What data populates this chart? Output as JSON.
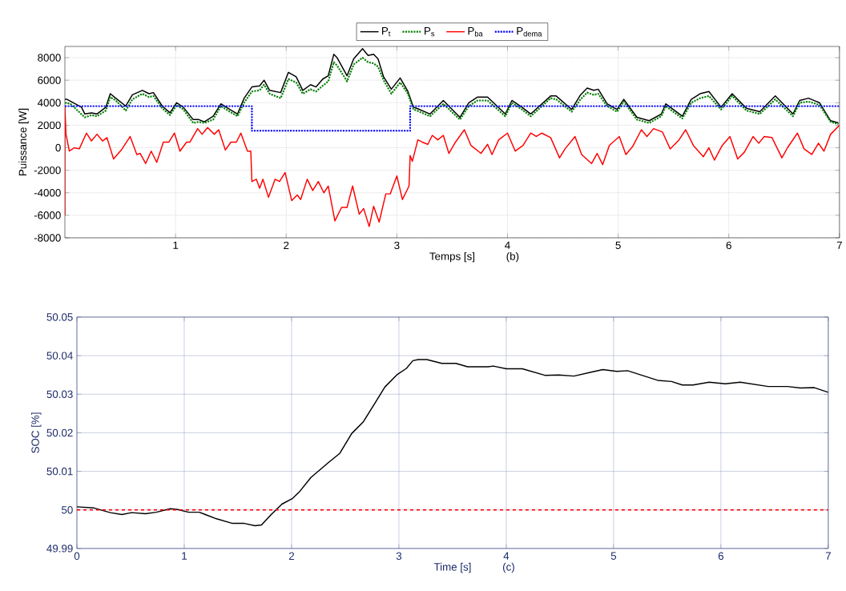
{
  "chart_data": [
    {
      "type": "line",
      "xlabel": "Temps [s]",
      "ylabel": "Puissance [W]",
      "annotations": [
        "(b)"
      ],
      "xlim": [
        0,
        7
      ],
      "xticks": [
        1,
        2,
        3,
        4,
        5,
        6,
        7
      ],
      "ylim": [
        -8000,
        9000
      ],
      "yticks": [
        -8000,
        -6000,
        -4000,
        -2000,
        0,
        2000,
        4000,
        6000,
        8000
      ],
      "grid": true,
      "legend": "top",
      "series": [
        {
          "name": "P$_{t}$",
          "color": "#000000",
          "line_style": "solid",
          "x": [
            0,
            0.02,
            0.15,
            0.18,
            0.24,
            0.29,
            0.37,
            0.41,
            0.46,
            0.55,
            0.61,
            0.7,
            0.76,
            0.8,
            0.88,
            0.95,
            1.01,
            1.07,
            1.16,
            1.21,
            1.26,
            1.34,
            1.41,
            1.49,
            1.56,
            1.62,
            1.69,
            1.76,
            1.8,
            1.85,
            1.95,
            2.02,
            2.09,
            2.15,
            2.22,
            2.27,
            2.33,
            2.38,
            2.43,
            2.46,
            2.55,
            2.61,
            2.69,
            2.74,
            2.79,
            2.83,
            2.88,
            2.95,
            3.03,
            3.1,
            3.15,
            3.18,
            3.3,
            3.42,
            3.57,
            3.65,
            3.73,
            3.82,
            3.98,
            4.04,
            4.13,
            4.21,
            4.39,
            4.44,
            4.58,
            4.66,
            4.72,
            4.78,
            4.82,
            4.9,
            4.99,
            5.05,
            5.17,
            5.28,
            5.39,
            5.43,
            5.58,
            5.66,
            5.74,
            5.82,
            5.93,
            6.03,
            6.16,
            6.28,
            6.42,
            6.58,
            6.64,
            6.72,
            6.82,
            6.92,
            6.99
          ],
          "values": [
            4300,
            4300,
            3600,
            3000,
            3100,
            3000,
            3600,
            4800,
            4400,
            3700,
            4700,
            5100,
            4800,
            4900,
            3700,
            3100,
            4000,
            3600,
            2500,
            2500,
            2300,
            2800,
            3900,
            3400,
            3000,
            4400,
            5400,
            5500,
            6000,
            5100,
            4900,
            6700,
            6300,
            5100,
            5600,
            5400,
            6100,
            6400,
            8300,
            8000,
            6400,
            7900,
            8800,
            8200,
            8300,
            7900,
            6300,
            5200,
            6200,
            5000,
            3600,
            3500,
            3000,
            4200,
            2700,
            4000,
            4500,
            4500,
            3000,
            4200,
            3600,
            3000,
            4600,
            4600,
            3400,
            4700,
            5300,
            5100,
            5200,
            3900,
            3400,
            4300,
            2700,
            2400,
            3000,
            3900,
            2800,
            4300,
            4800,
            5000,
            3600,
            4800,
            3500,
            3200,
            4600,
            3000,
            4200,
            4400,
            4000,
            2400,
            2200
          ]
        },
        {
          "name": "P$_{s}$",
          "color": "#008000",
          "line_style": "dotted",
          "x": [
            0,
            0.05,
            0.18,
            0.24,
            0.29,
            0.37,
            0.41,
            0.46,
            0.55,
            0.61,
            0.7,
            0.76,
            0.8,
            0.88,
            0.95,
            1.01,
            1.07,
            1.16,
            1.21,
            1.26,
            1.34,
            1.41,
            1.49,
            1.56,
            1.62,
            1.69,
            1.76,
            1.8,
            1.85,
            1.95,
            2.02,
            2.09,
            2.15,
            2.22,
            2.27,
            2.33,
            2.38,
            2.43,
            2.46,
            2.55,
            2.61,
            2.69,
            2.74,
            2.79,
            2.83,
            2.88,
            2.95,
            3.03,
            3.1,
            3.15,
            3.18,
            3.3,
            3.42,
            3.57,
            3.65,
            3.73,
            3.82,
            3.98,
            4.04,
            4.13,
            4.21,
            4.39,
            4.44,
            4.58,
            4.66,
            4.72,
            4.78,
            4.82,
            4.9,
            4.99,
            5.05,
            5.17,
            5.28,
            5.39,
            5.43,
            5.58,
            5.66,
            5.74,
            5.82,
            5.93,
            6.03,
            6.16,
            6.28,
            6.42,
            6.58,
            6.64,
            6.72,
            6.82,
            6.92,
            6.99
          ],
          "values": [
            4000,
            3900,
            2700,
            2900,
            2800,
            3300,
            4500,
            4200,
            3300,
            4300,
            4800,
            4500,
            4600,
            3500,
            2900,
            3800,
            3400,
            2200,
            2300,
            2200,
            2500,
            3700,
            3200,
            2800,
            4000,
            5000,
            5100,
            5600,
            4800,
            4400,
            6100,
            5800,
            4800,
            5200,
            5000,
            5500,
            5900,
            7600,
            7300,
            5900,
            7400,
            8000,
            7600,
            7500,
            7200,
            6000,
            4800,
            5800,
            4800,
            3400,
            3300,
            2800,
            3900,
            2500,
            3700,
            4200,
            4200,
            2800,
            4000,
            3400,
            2800,
            4400,
            4300,
            3200,
            4300,
            4900,
            4700,
            4800,
            3700,
            3200,
            4100,
            2500,
            2200,
            2800,
            3700,
            2600,
            4000,
            4400,
            4600,
            3400,
            4600,
            3300,
            3000,
            4300,
            2800,
            4000,
            4100,
            3800,
            2300,
            2100
          ]
        },
        {
          "name": "P$_{ba}$",
          "color": "#ff0000",
          "line_style": "solid",
          "x": [
            0,
            0,
            0.01,
            0.04,
            0.085,
            0.13,
            0.195,
            0.24,
            0.29,
            0.34,
            0.38,
            0.44,
            0.51,
            0.59,
            0.65,
            0.68,
            0.73,
            0.78,
            0.83,
            0.89,
            0.94,
            0.99,
            1.04,
            1.1,
            1.13,
            1.2,
            1.24,
            1.29,
            1.35,
            1.39,
            1.45,
            1.5,
            1.55,
            1.59,
            1.65,
            1.68,
            1.69,
            1.73,
            1.76,
            1.79,
            1.84,
            1.9,
            1.94,
            1.99,
            2.05,
            2.1,
            2.13,
            2.19,
            2.24,
            2.29,
            2.34,
            2.38,
            2.44,
            2.5,
            2.55,
            2.6,
            2.66,
            2.7,
            2.75,
            2.79,
            2.84,
            2.9,
            2.94,
            3.0,
            3.05,
            3.11,
            3.12,
            3.14,
            3.19,
            3.23,
            3.28,
            3.32,
            3.37,
            3.42,
            3.47,
            3.53,
            3.61,
            3.67,
            3.76,
            3.82,
            3.86,
            3.92,
            4.0,
            4.07,
            4.14,
            4.21,
            4.26,
            4.31,
            4.39,
            4.47,
            4.52,
            4.61,
            4.67,
            4.76,
            4.81,
            4.86,
            4.92,
            5.01,
            5.07,
            5.13,
            5.21,
            5.26,
            5.32,
            5.4,
            5.47,
            5.55,
            5.61,
            5.68,
            5.77,
            5.82,
            5.87,
            5.94,
            6.01,
            6.08,
            6.14,
            6.22,
            6.27,
            6.32,
            6.39,
            6.48,
            6.53,
            6.62,
            6.68,
            6.75,
            6.81,
            6.86,
            6.92,
            7.0
          ],
          "values": [
            -6000,
            3600,
            1200,
            -300,
            0,
            -100,
            1300,
            600,
            1200,
            600,
            900,
            -1000,
            -200,
            1000,
            -600,
            -500,
            -1400,
            -300,
            -1300,
            500,
            500,
            1300,
            -300,
            500,
            500,
            1700,
            1200,
            1800,
            1200,
            1600,
            -200,
            500,
            500,
            1300,
            -300,
            -300,
            -3000,
            -2800,
            -3600,
            -2800,
            -4400,
            -2800,
            -3000,
            -2200,
            -4700,
            -4200,
            -4600,
            -2800,
            -3800,
            -3000,
            -4000,
            -3400,
            -6500,
            -5300,
            -5300,
            -3400,
            -5900,
            -5400,
            -7000,
            -5200,
            -6600,
            -4100,
            -4100,
            -2500,
            -4600,
            -3400,
            -700,
            -1200,
            700,
            500,
            300,
            1100,
            700,
            1100,
            -500,
            500,
            1600,
            200,
            -500,
            300,
            -600,
            700,
            1300,
            -300,
            200,
            1300,
            1000,
            1300,
            900,
            -900,
            -100,
            1000,
            -600,
            -1400,
            -500,
            -1500,
            200,
            1000,
            -600,
            100,
            1600,
            1000,
            1700,
            1400,
            -100,
            700,
            1600,
            200,
            -800,
            0,
            -1100,
            200,
            1000,
            -1000,
            -400,
            1000,
            400,
            1000,
            900,
            -900,
            0,
            1300,
            -100,
            -600,
            400,
            -300,
            1200,
            2000
          ]
        },
        {
          "name": "P$_{dema}$",
          "color": "#0000ff",
          "line_style": "dotted",
          "x": [
            0,
            1.69,
            1.69,
            3.12,
            3.12,
            7
          ],
          "values": [
            3700,
            3700,
            1500,
            1500,
            3700,
            3700
          ]
        }
      ]
    },
    {
      "type": "line",
      "xlabel": "Time [s]",
      "ylabel": "SOC [%]",
      "annotations": [
        "(c)"
      ],
      "xlim": [
        0,
        7
      ],
      "xticks": [
        0,
        1,
        2,
        3,
        4,
        5,
        6,
        7
      ],
      "ylim": [
        49.99,
        50.05
      ],
      "yticks": [
        49.99,
        50,
        50.01,
        50.02,
        50.03,
        50.04,
        50.05
      ],
      "grid": true,
      "ref_lines": [
        {
          "axis": "y",
          "value": 50,
          "color": "#ff0000",
          "line_style": "dashed"
        }
      ],
      "series": [
        {
          "color": "#000000",
          "line_style": "solid",
          "x": [
            0,
            0.16,
            0.31,
            0.42,
            0.51,
            0.64,
            0.74,
            0.87,
            0.94,
            1.04,
            1.14,
            1.3,
            1.45,
            1.56,
            1.66,
            1.72,
            1.81,
            1.91,
            2.01,
            2.07,
            2.18,
            2.34,
            2.45,
            2.56,
            2.67,
            2.77,
            2.87,
            2.98,
            3.07,
            3.13,
            3.18,
            3.26,
            3.4,
            3.53,
            3.64,
            3.83,
            3.88,
            4.0,
            4.15,
            4.36,
            4.49,
            4.63,
            4.79,
            4.9,
            5.03,
            5.13,
            5.41,
            5.54,
            5.64,
            5.74,
            5.89,
            6.04,
            6.18,
            6.44,
            6.62,
            6.74,
            6.87,
            7.0
          ],
          "values": [
            50.0008,
            50.0005,
            49.9993,
            49.9988,
            49.9993,
            49.999,
            49.9994,
            50.0003,
            50.0001,
            49.9994,
            49.9994,
            49.9977,
            49.9965,
            49.9965,
            49.9959,
            49.9961,
            49.9988,
            50.0015,
            50.003,
            50.0046,
            50.0084,
            50.0122,
            50.0147,
            50.0198,
            50.0229,
            50.0274,
            50.0319,
            50.035,
            50.0367,
            50.0387,
            50.039,
            50.039,
            50.038,
            50.038,
            50.0371,
            50.0371,
            50.0373,
            50.0366,
            50.0366,
            50.0349,
            50.035,
            50.0347,
            50.0357,
            50.0364,
            50.0359,
            50.0361,
            50.0336,
            50.0333,
            50.0324,
            50.0324,
            50.0331,
            50.0327,
            50.0331,
            50.032,
            50.032,
            50.0316,
            50.0317,
            50.0305
          ]
        }
      ]
    }
  ]
}
